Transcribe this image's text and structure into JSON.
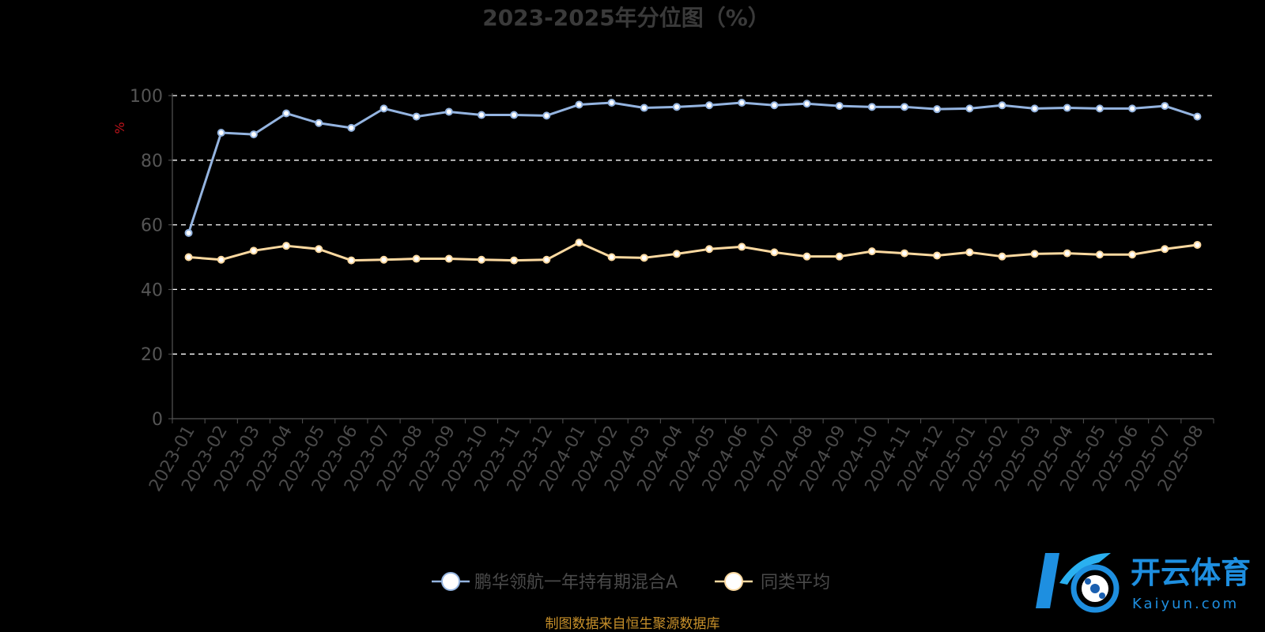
{
  "chart_data": {
    "type": "line",
    "title": "2023-2025年分位图（%）",
    "ylabel": "%",
    "xlabel": "",
    "ylim": [
      0,
      100
    ],
    "yticks": [
      0,
      20,
      40,
      60,
      80,
      100
    ],
    "grid": true,
    "legend_position": "bottom",
    "categories": [
      "2023-01",
      "2023-02",
      "2023-03",
      "2023-04",
      "2023-05",
      "2023-06",
      "2023-07",
      "2023-08",
      "2023-09",
      "2023-10",
      "2023-11",
      "2023-12",
      "2024-01",
      "2024-02",
      "2024-03",
      "2024-04",
      "2024-05",
      "2024-06",
      "2024-07",
      "2024-08",
      "2024-09",
      "2024-10",
      "2024-11",
      "2024-12",
      "2025-01",
      "2025-02",
      "2025-03",
      "2025-04",
      "2025-05",
      "2025-06",
      "2025-07",
      "2025-08"
    ],
    "series": [
      {
        "name": "鹏华领航一年持有期混合A",
        "color": "#94b4e0",
        "values": [
          57.5,
          88.5,
          88.0,
          94.5,
          91.5,
          90.0,
          96.0,
          93.5,
          95.0,
          94.0,
          94.0,
          93.8,
          97.2,
          97.8,
          96.2,
          96.5,
          97.0,
          97.8,
          97.0,
          97.5,
          96.8,
          96.5,
          96.5,
          95.8,
          96.0,
          97.0,
          96.0,
          96.2,
          96.0,
          96.0,
          96.8,
          93.5
        ]
      },
      {
        "name": "同类平均",
        "color": "#fcd9a0",
        "values": [
          50.0,
          49.2,
          52.0,
          53.5,
          52.5,
          49.0,
          49.2,
          49.5,
          49.5,
          49.2,
          49.0,
          49.2,
          54.5,
          50.0,
          49.8,
          51.0,
          52.5,
          53.2,
          51.5,
          50.2,
          50.2,
          51.8,
          51.2,
          50.5,
          51.5,
          50.2,
          51.0,
          51.2,
          50.8,
          50.8,
          52.5,
          53.8
        ]
      }
    ]
  },
  "source_note": "制图数据来自恒生聚源数据库",
  "watermark": {
    "cn": "开云体育",
    "en": "Kaiyun.com"
  }
}
